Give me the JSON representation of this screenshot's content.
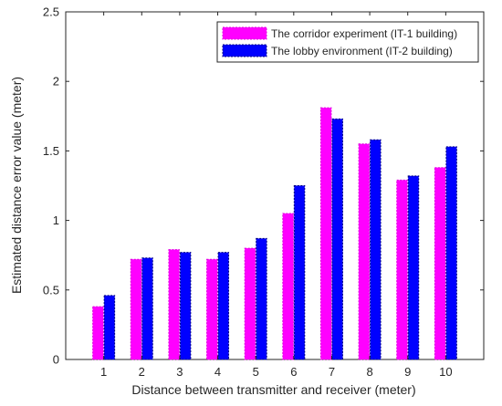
{
  "chart_data": {
    "type": "bar",
    "title": "",
    "xlabel": "Distance between transmitter and receiver (meter)",
    "ylabel": "Estimated distance error value (meter)",
    "categories": [
      "1",
      "2",
      "3",
      "4",
      "5",
      "6",
      "7",
      "8",
      "9",
      "10"
    ],
    "ylim": [
      0,
      2.5
    ],
    "yticks": [
      0,
      0.5,
      1,
      1.5,
      2,
      2.5
    ],
    "ytick_labels": [
      "0",
      "0.5",
      "1",
      "1.5",
      "2",
      "2.5"
    ],
    "grid": false,
    "legend_position": "top-right",
    "series": [
      {
        "name": "The corridor experiment (IT-1 building)",
        "color": "#ff00ff",
        "edge_color": "#e000e0",
        "values": [
          0.38,
          0.72,
          0.79,
          0.72,
          0.8,
          1.05,
          1.81,
          1.55,
          1.29,
          1.38
        ]
      },
      {
        "name": "The lobby environment (IT-2 building)",
        "color": "#0000ff",
        "edge_color": "#000080",
        "values": [
          0.46,
          0.73,
          0.77,
          0.77,
          0.87,
          1.25,
          1.73,
          1.58,
          1.32,
          1.53
        ]
      }
    ]
  }
}
